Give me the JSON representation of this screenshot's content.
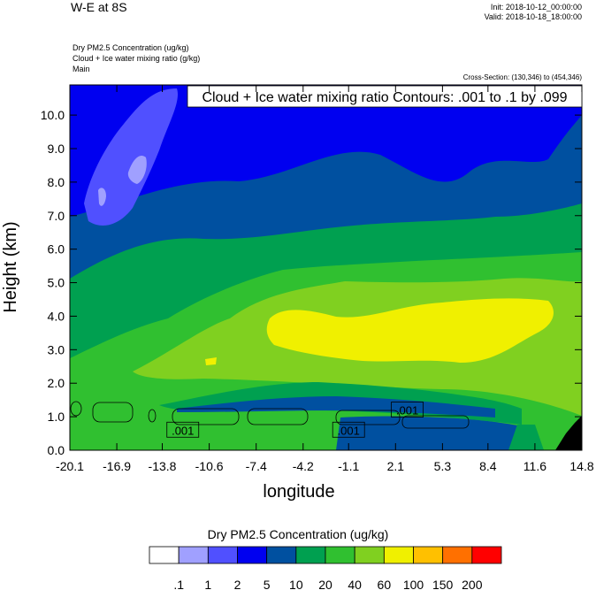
{
  "header": {
    "title": "W-E at 8S",
    "init": "Init: 2018-10-12_00:00:00",
    "valid": "Valid: 2018-10-18_18:00:00",
    "field_line1": "Dry PM2.5 Concentration   (ug/kg)",
    "field_line2": "Cloud + Ice water mixing ratio   (g/kg)",
    "field_line3": "Main",
    "cross_section": "Cross-Section: (130,346) to (454,346)"
  },
  "chart_data": {
    "type": "heatmap",
    "title": "Cloud + Ice water mixing ratio Contours: .001 to .1 by .099",
    "xlabel": "longitude",
    "ylabel": "Height (km)",
    "xlim": [
      -20.1,
      14.8
    ],
    "ylim": [
      0.0,
      10.9
    ],
    "x_ticks": [
      "-20.1",
      "-16.9",
      "-13.8",
      "-10.6",
      "-7.4",
      "-4.2",
      "-1.1",
      "2.1",
      "5.3",
      "8.4",
      "11.6",
      "14.8"
    ],
    "y_ticks": [
      "0.0",
      "1.0",
      "2.0",
      "3.0",
      "4.0",
      "5.0",
      "6.0",
      "7.0",
      "8.0",
      "9.0",
      "10.0"
    ],
    "contour_labels": [
      {
        "text": ".001",
        "x": -12.4,
        "y": 0.6
      },
      {
        "text": ".001",
        "x": -1.1,
        "y": 0.6
      },
      {
        "text": ".001",
        "x": 2.9,
        "y": 1.2
      }
    ],
    "colorbar": {
      "title": "Dry PM2.5 Concentration  (ug/kg)",
      "levels": [
        ".1",
        "1",
        "2",
        "5",
        "10",
        "20",
        "40",
        "60",
        "100",
        "150",
        "200"
      ],
      "colors": [
        "#ffffff",
        "#a0a0ff",
        "#5050ff",
        "#0000f0",
        "#0050a0",
        "#00a050",
        "#30c030",
        "#80d020",
        "#f0f000",
        "#ffc000",
        "#ff7000",
        "#ff0000"
      ]
    }
  }
}
